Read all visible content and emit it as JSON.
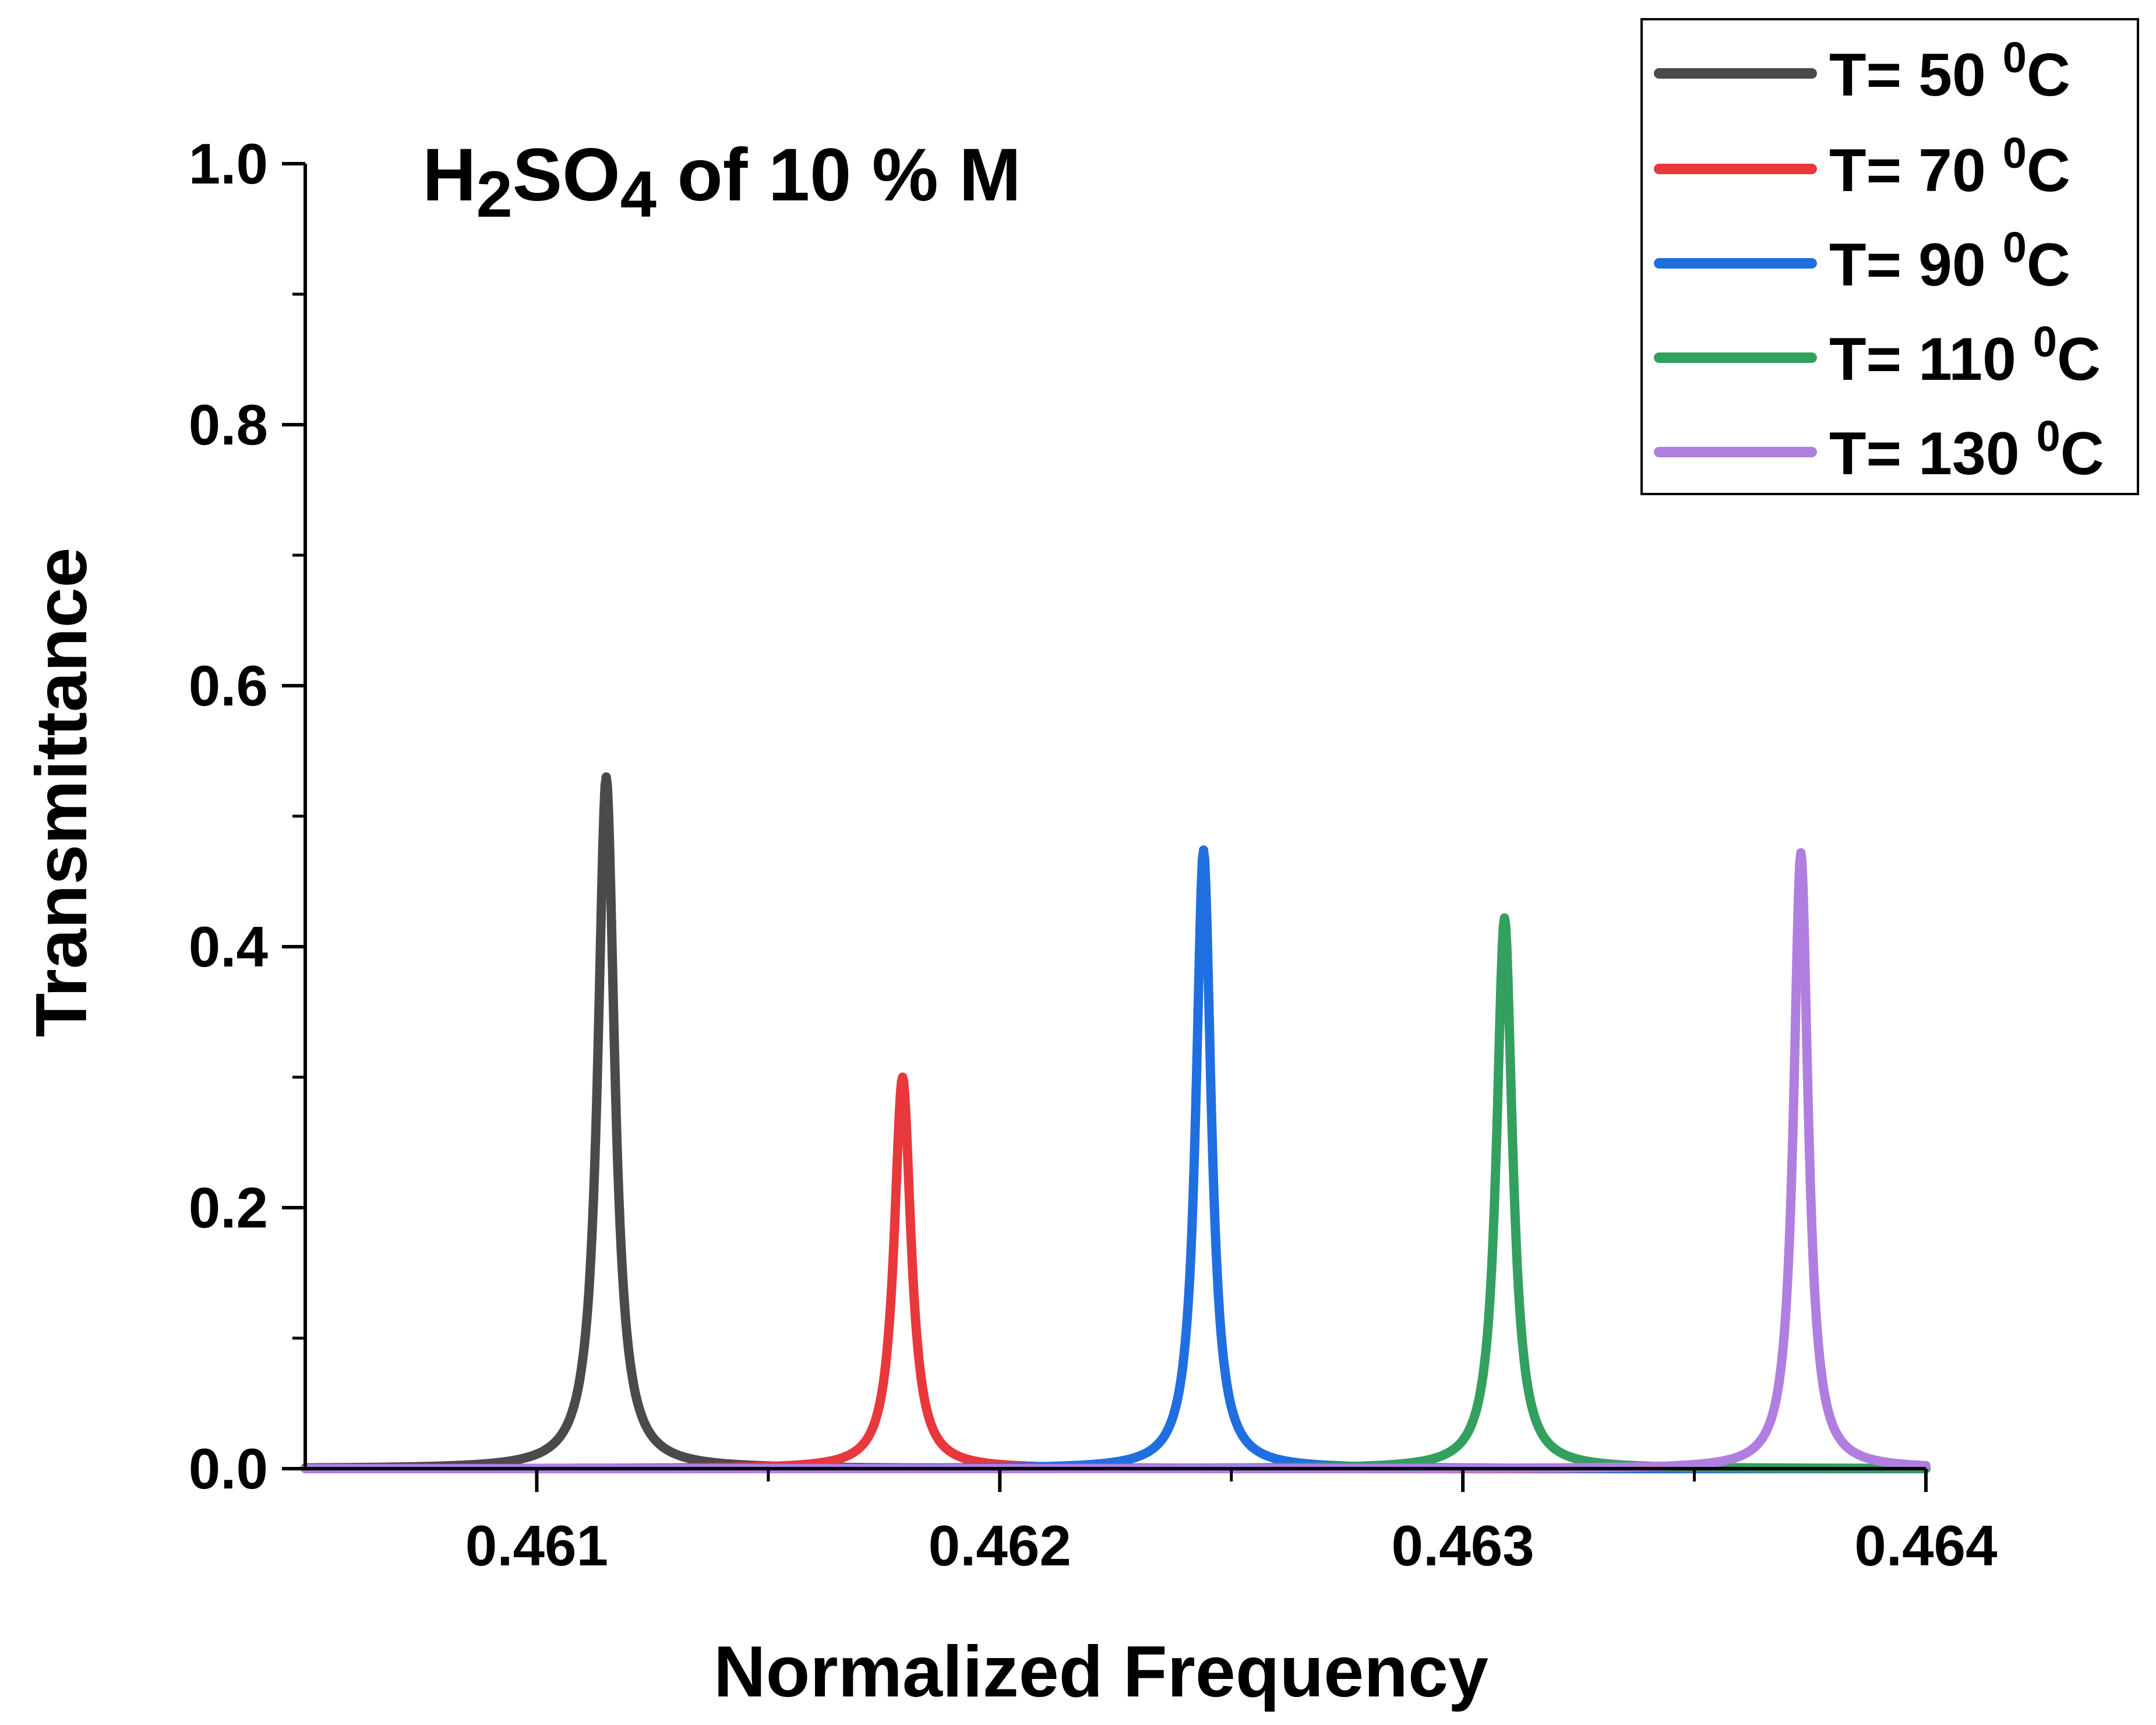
{
  "chart_data": {
    "type": "line",
    "title": {
      "formula": [
        {
          "text": "H",
          "sub": false
        },
        {
          "text": "2",
          "sub": true
        },
        {
          "text": "SO",
          "sub": false
        },
        {
          "text": "4",
          "sub": true
        }
      ],
      "rest": " of 10 % M"
    },
    "xlabel": "Normalized Frequency",
    "ylabel": "Transmittance",
    "xlim": [
      0.4605,
      0.464
    ],
    "ylim": [
      0,
      1.0
    ],
    "x_ticks": [
      0.461,
      0.462,
      0.463,
      0.464
    ],
    "x_tick_labels": [
      "0.461",
      "0.462",
      "0.463",
      "0.464"
    ],
    "x_minor_ticks": [
      0.4615,
      0.4625,
      0.4635
    ],
    "y_ticks": [
      0,
      0.2,
      0.4,
      0.6,
      0.8,
      1.0
    ],
    "y_tick_labels": [
      "0.0",
      "0.2",
      "0.4",
      "0.6",
      "0.8",
      "1.0"
    ],
    "y_minor_ticks": [
      0.1,
      0.3,
      0.5,
      0.7,
      0.9
    ],
    "grid": false,
    "legend_position": "top-right",
    "series": [
      {
        "name": "T= 50 ⁰C",
        "label_main": "T= 50 ",
        "label_sup": "0",
        "label_unit": "C",
        "color": "#4a4a4a",
        "peak_x": 0.46115,
        "peak_y": 0.53,
        "half_width": 2.2e-05
      },
      {
        "name": "T= 70 ⁰C",
        "label_main": "T= 70 ",
        "label_sup": "0",
        "label_unit": "C",
        "color": "#e8383b",
        "peak_x": 0.46179,
        "peak_y": 0.3,
        "half_width": 2.2e-05
      },
      {
        "name": "T= 90 ⁰C",
        "label_main": "T= 90 ",
        "label_sup": "0",
        "label_unit": "C",
        "color": "#1f6fe0",
        "peak_x": 0.46244,
        "peak_y": 0.474,
        "half_width": 2e-05
      },
      {
        "name": "T= 110 ⁰C",
        "label_main": "T= 110 ",
        "label_sup": "0",
        "label_unit": "C",
        "color": "#33a05f",
        "peak_x": 0.46309,
        "peak_y": 0.422,
        "half_width": 2.1e-05
      },
      {
        "name": "T= 130 ⁰C",
        "label_main": "T= 130 ",
        "label_sup": "0",
        "label_unit": "C",
        "color": "#b07ee0",
        "peak_x": 0.46373,
        "peak_y": 0.472,
        "half_width": 1.9e-05
      }
    ]
  }
}
